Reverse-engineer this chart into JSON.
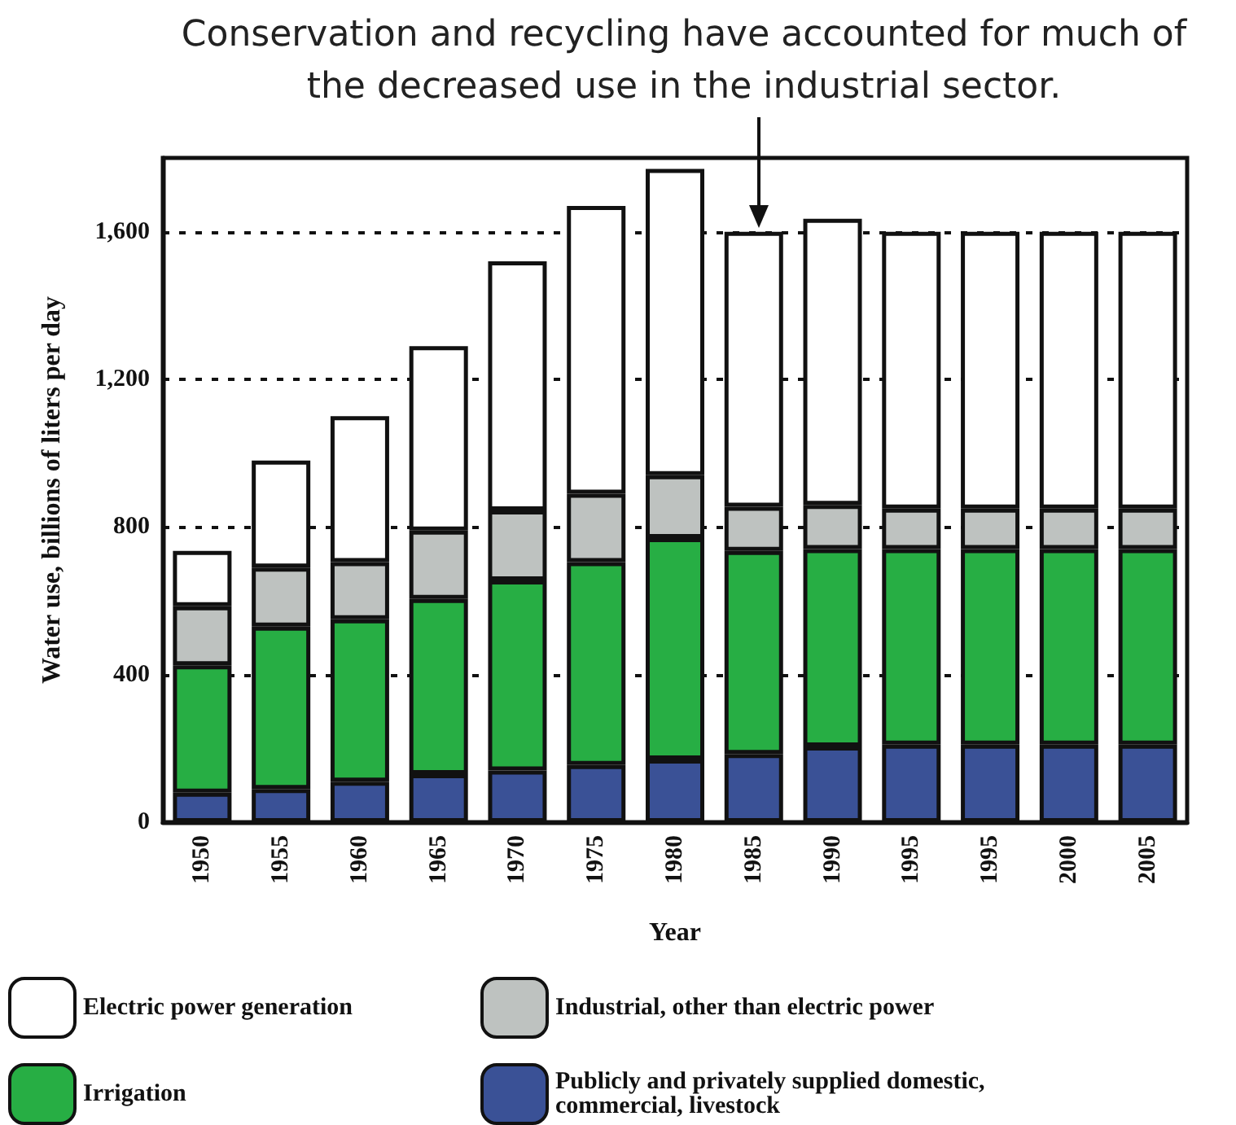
{
  "chart_data": {
    "type": "bar",
    "stacked": true,
    "annotations": [
      "Conservation and recycling have accounted for much of the decreased use in the industrial sector."
    ],
    "xlabel": "Year",
    "ylabel": "Water use, billions of liters per day",
    "categories": [
      "1950",
      "1955",
      "1960",
      "1965",
      "1970",
      "1975",
      "1980",
      "1985",
      "1990",
      "1995",
      "1995",
      "2000",
      "2005"
    ],
    "series": [
      {
        "name": "Publicly and privately supplied domestic, commercial, livestock",
        "color": "#3a5196",
        "values": [
          80,
          90,
          110,
          130,
          140,
          155,
          170,
          185,
          205,
          210,
          210,
          210,
          210
        ]
      },
      {
        "name": "Irrigation",
        "color": "#27ae44",
        "values": [
          345,
          440,
          440,
          475,
          515,
          550,
          600,
          550,
          535,
          530,
          530,
          530,
          530
        ]
      },
      {
        "name": "Industrial, other than electric power",
        "color": "#bec2c0",
        "values": [
          160,
          160,
          155,
          185,
          190,
          185,
          170,
          120,
          120,
          110,
          110,
          110,
          110
        ]
      },
      {
        "name": "Electric power generation",
        "color": "#ffffff",
        "values": [
          150,
          290,
          395,
          500,
          675,
          780,
          830,
          745,
          775,
          750,
          750,
          750,
          750
        ]
      }
    ],
    "ylim": [
      0,
      1800
    ],
    "yticks": [
      0,
      400,
      800,
      {
        "value": 1200,
        "label": "1,200"
      },
      {
        "value": 1600,
        "label": "1,600"
      }
    ],
    "grid": "y",
    "legend": "bottom"
  }
}
